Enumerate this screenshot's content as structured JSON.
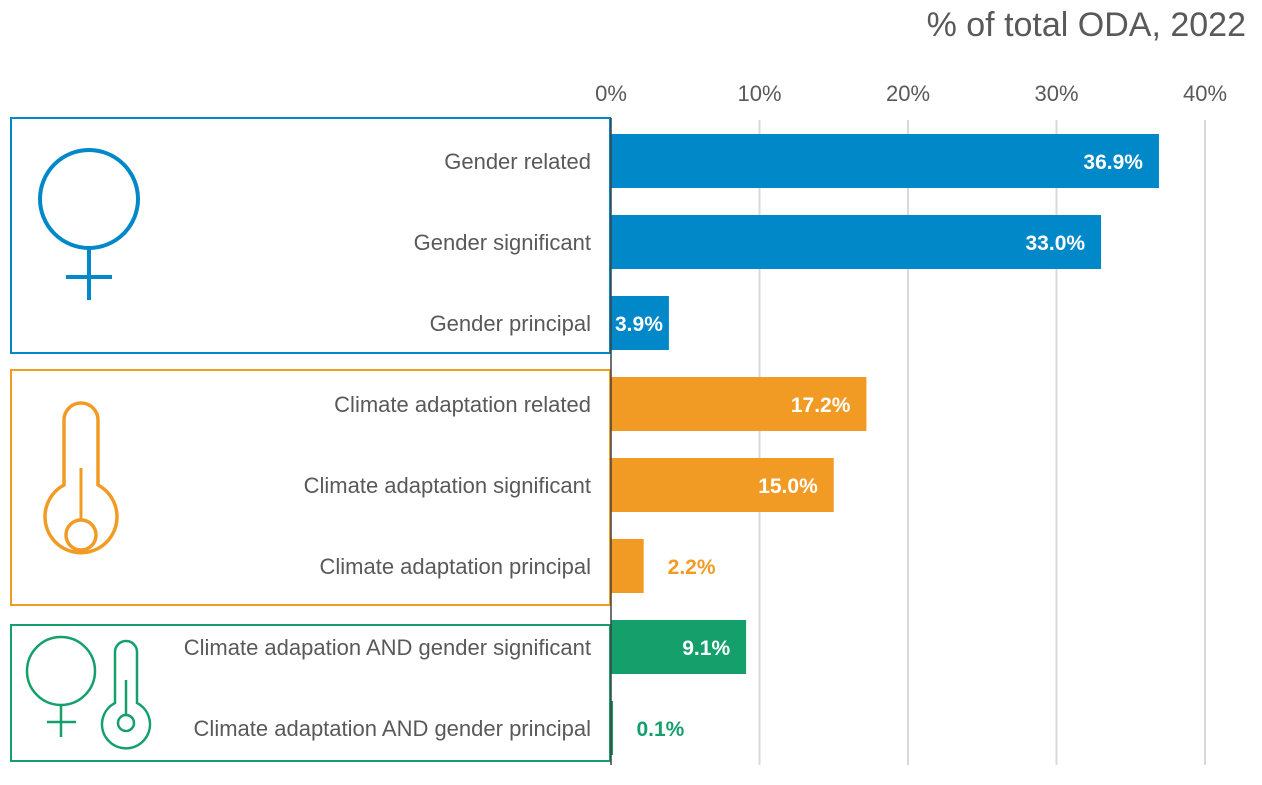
{
  "chart_data": {
    "type": "bar",
    "orientation": "horizontal",
    "title": "% of total ODA, 2022",
    "xlim": [
      0,
      40
    ],
    "x_ticks": [
      {
        "value": 0,
        "label": "0%"
      },
      {
        "value": 10,
        "label": "10%"
      },
      {
        "value": 20,
        "label": "20%"
      },
      {
        "value": 30,
        "label": "30%"
      },
      {
        "value": 40,
        "label": "40%"
      }
    ],
    "grid": "vertical",
    "categories": [
      "Gender related",
      "Gender significant",
      "Gender principal",
      "Climate adaptation related",
      "Climate adaptation significant",
      "Climate adaptation principal",
      "Climate adapation AND gender significant",
      "Climate adaptation AND gender principal"
    ],
    "values": [
      36.9,
      33.0,
      3.9,
      17.2,
      15.0,
      2.2,
      9.1,
      0.1
    ],
    "data_labels": [
      "36.9%",
      "33.0%",
      "3.9%",
      "17.2%",
      "15.0%",
      "2.2%",
      "9.1%",
      "0.1%"
    ],
    "groups": [
      {
        "icon": "female-symbol-icon",
        "color": "#0088C9",
        "members": [
          0,
          1,
          2
        ]
      },
      {
        "icon": "thermometer-icon",
        "color": "#F29B24",
        "members": [
          3,
          4,
          5
        ]
      },
      {
        "icon": "female-thermometer-icon",
        "color": "#149F6B",
        "members": [
          6,
          7
        ]
      }
    ]
  }
}
